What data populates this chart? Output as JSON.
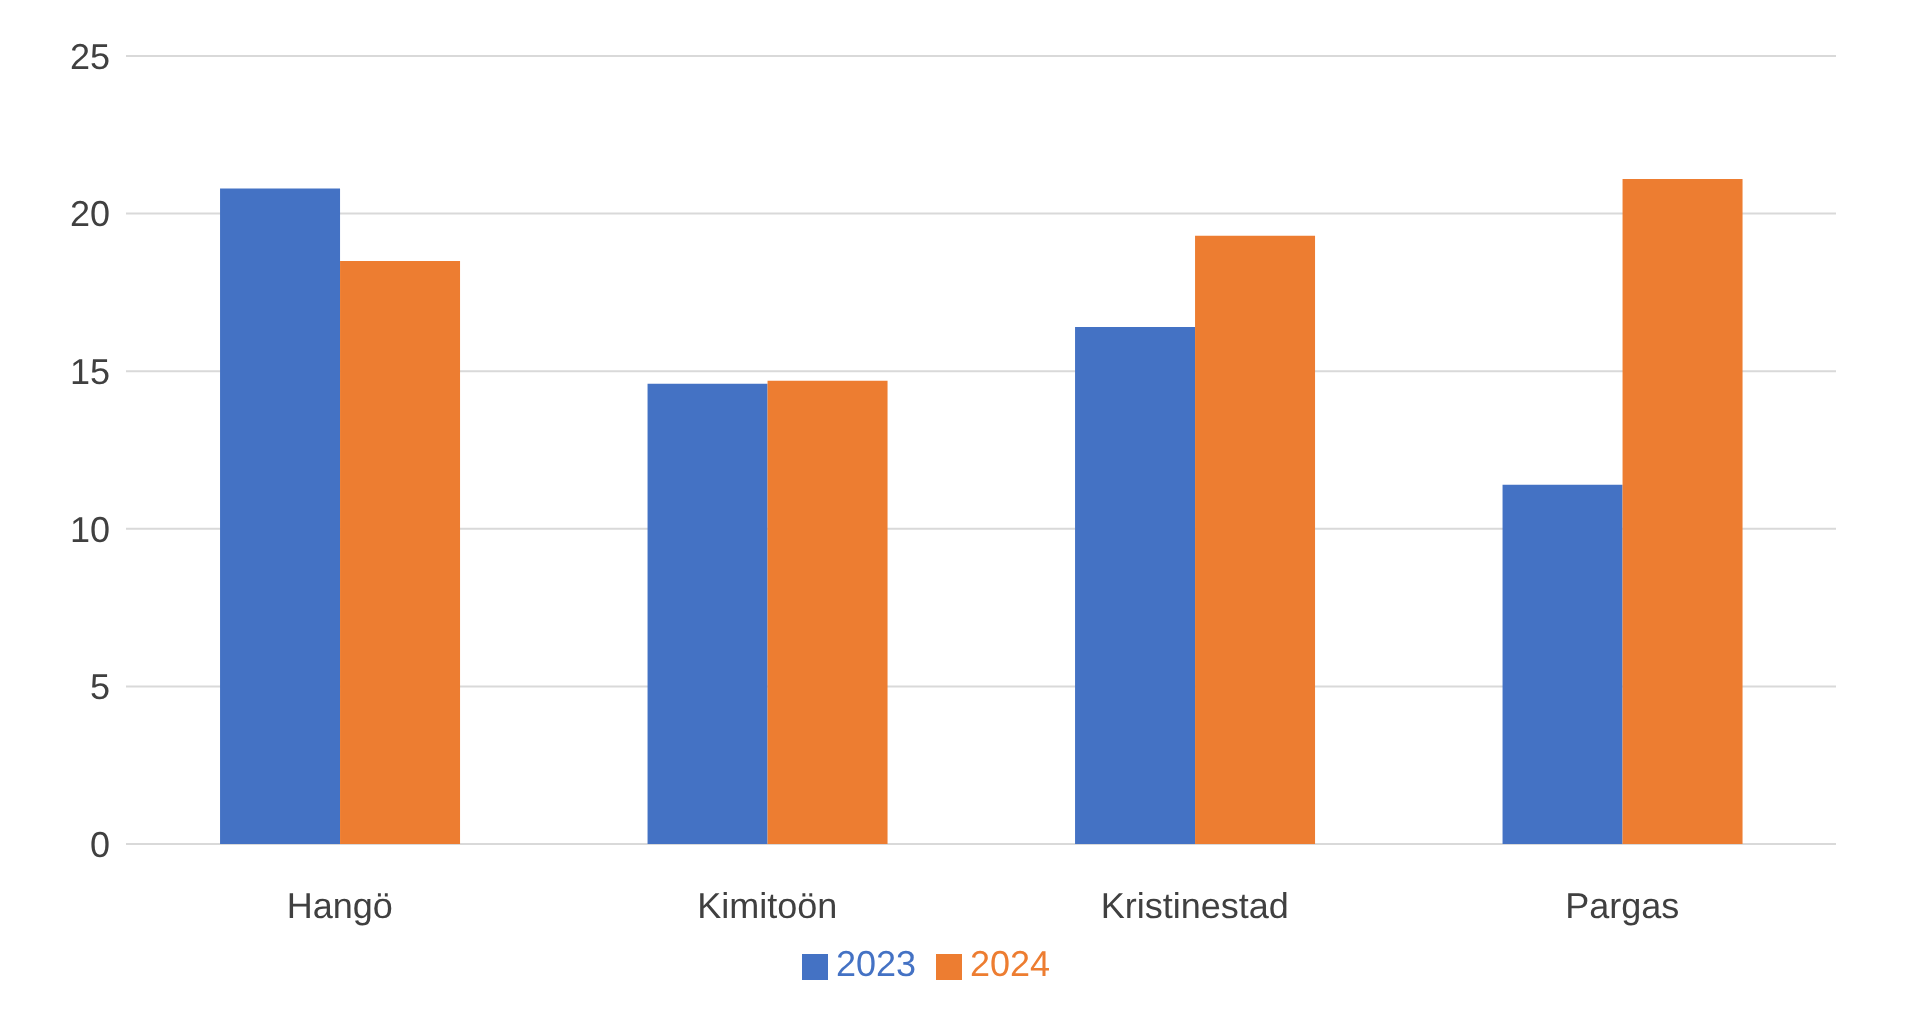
{
  "chart_data": {
    "type": "bar",
    "categories": [
      "Hangö",
      "Kimitoön",
      "Kristinestad",
      "Pargas"
    ],
    "series": [
      {
        "name": "2023",
        "color": "#4472c4",
        "values": [
          20.8,
          14.6,
          16.4,
          11.4
        ]
      },
      {
        "name": "2024",
        "color": "#ed7d31",
        "values": [
          18.5,
          14.7,
          19.3,
          21.1
        ]
      }
    ],
    "ylim": [
      0,
      25
    ],
    "yticks": [
      0,
      5,
      10,
      15,
      20,
      25
    ],
    "grid": "y",
    "legend": "bottom"
  }
}
